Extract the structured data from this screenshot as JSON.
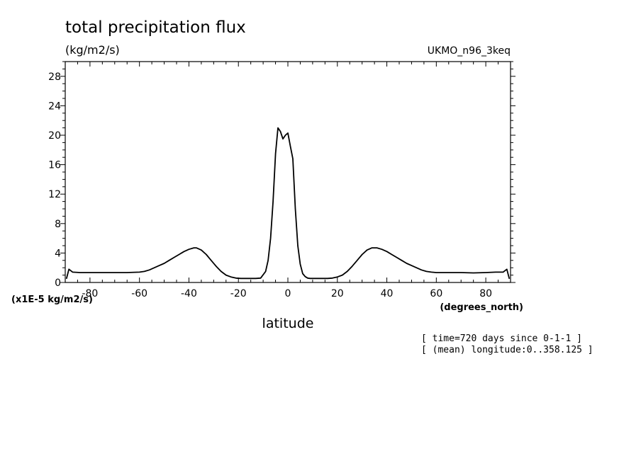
{
  "chart_data": {
    "type": "line",
    "title": "total precipitation flux",
    "subtitle": "(kg/m2/s)",
    "dataset": "UKMO_n96_3keq",
    "xlabel": "latitude",
    "x_units": "(degrees_north)",
    "y_units": "(x1E-5 kg/m2/s)",
    "xlim": [
      -90,
      90
    ],
    "ylim": [
      0,
      30
    ],
    "xticks": [
      -80,
      -60,
      -40,
      -20,
      0,
      20,
      40,
      60,
      80
    ],
    "yticks": [
      0,
      4,
      8,
      12,
      16,
      20,
      24,
      28
    ],
    "xtick_labels": [
      "-80",
      "-60",
      "-40",
      "-20",
      "0",
      "20",
      "40",
      "60",
      "80"
    ],
    "ytick_labels": [
      "0",
      "4",
      "8",
      "12",
      "16",
      "20",
      "24",
      "28"
    ],
    "grid": false,
    "annotations": [
      "[ time=720 days since 0-1-1 ]",
      "[ (mean) longitude:0..358.125 ]"
    ],
    "series": [
      {
        "x": [
          -89.5,
          -88.5,
          -87,
          -84,
          -80,
          -75,
          -70,
          -65,
          -60,
          -58,
          -56,
          -54,
          -52,
          -50,
          -48,
          -46,
          -44,
          -42,
          -40,
          -38,
          -37,
          -35,
          -33,
          -31,
          -29,
          -27,
          -25,
          -23,
          -21,
          -19,
          -17,
          -15,
          -13,
          -11,
          -9,
          -8,
          -7,
          -6,
          -5,
          -4,
          -3,
          -2,
          -1,
          0,
          1,
          2,
          3,
          4,
          5,
          6,
          7,
          8,
          9,
          10,
          12,
          14,
          16,
          18,
          20,
          22,
          24,
          26,
          28,
          30,
          32,
          34,
          36,
          38,
          40,
          42,
          44,
          46,
          48,
          50,
          52,
          54,
          56,
          58,
          60,
          65,
          70,
          75,
          80,
          84,
          87,
          88.5,
          89.5
        ],
        "values": [
          0.5,
          1.8,
          1.4,
          1.35,
          1.35,
          1.35,
          1.35,
          1.35,
          1.4,
          1.5,
          1.7,
          2.0,
          2.3,
          2.6,
          3.0,
          3.4,
          3.8,
          4.2,
          4.5,
          4.7,
          4.7,
          4.4,
          3.8,
          3.0,
          2.2,
          1.5,
          1.0,
          0.75,
          0.6,
          0.55,
          0.55,
          0.55,
          0.55,
          0.6,
          1.5,
          3.0,
          6.0,
          11.0,
          17.5,
          21.0,
          20.5,
          19.5,
          20.0,
          20.3,
          18.5,
          16.8,
          10.0,
          5.0,
          2.5,
          1.2,
          0.8,
          0.6,
          0.55,
          0.55,
          0.55,
          0.55,
          0.55,
          0.6,
          0.75,
          1.0,
          1.5,
          2.2,
          3.0,
          3.8,
          4.4,
          4.7,
          4.7,
          4.5,
          4.2,
          3.8,
          3.4,
          3.0,
          2.6,
          2.3,
          2.0,
          1.7,
          1.5,
          1.4,
          1.35,
          1.35,
          1.35,
          1.3,
          1.35,
          1.4,
          1.4,
          1.8,
          0.5
        ]
      }
    ]
  }
}
